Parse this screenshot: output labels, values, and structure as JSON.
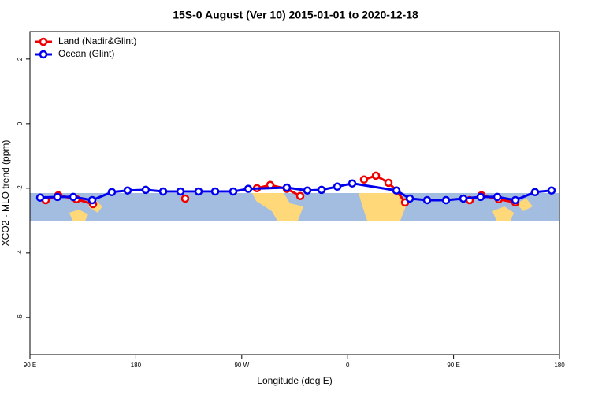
{
  "chart_data": {
    "type": "line",
    "title": "15S-0 August (Ver 10)   2015-01-01 to 2020-12-18",
    "xlabel": "Longitude (deg E)",
    "ylabel": "XCO2 - MLO trend (ppm)",
    "xlim": [
      90,
      540
    ],
    "xticks": [
      {
        "value": 90,
        "label": "90 E"
      },
      {
        "value": 180,
        "label": "180"
      },
      {
        "value": 270,
        "label": "90 W"
      },
      {
        "value": 360,
        "label": "0"
      },
      {
        "value": 450,
        "label": "90 E"
      },
      {
        "value": 540,
        "label": "180"
      }
    ],
    "ylim": [
      -7.15,
      2.85
    ],
    "yticks": [
      2,
      0,
      -2,
      -4,
      -6
    ],
    "legend": "upper left",
    "series": [
      {
        "name": "Land (Nadir&Glint)",
        "color": "#ee0000",
        "x": [
          103.4,
          114.1,
          129.5,
          143.6,
          null,
          221.9,
          null,
          282.9,
          294.2,
          308.3,
          319.7,
          null,
          373.9,
          384,
          394.7,
          401.4,
          408.8,
          null,
          463.7,
          473.7,
          488.4,
          502.5
        ],
        "values": [
          -2.37,
          -2.22,
          -2.34,
          -2.49,
          null,
          -2.32,
          null,
          -2.0,
          -1.9,
          -2.02,
          -2.24,
          null,
          -1.73,
          -1.61,
          -1.83,
          -2.07,
          -2.44,
          null,
          -2.37,
          -2.22,
          -2.34,
          -2.44
        ]
      },
      {
        "name": "Ocean (Glint)",
        "color": "#0000ee",
        "x": [
          98.7,
          113.4,
          126.8,
          142.9,
          159.6,
          173,
          188.4,
          203.2,
          217.9,
          233.3,
          247.4,
          262.8,
          275.5,
          308.3,
          325.7,
          337.8,
          351.2,
          363.9,
          401.4,
          412.8,
          427.5,
          443.6,
          458.3,
          473,
          487.1,
          502.5,
          519.2,
          533.3
        ],
        "values": [
          -2.29,
          -2.27,
          -2.27,
          -2.37,
          -2.12,
          -2.07,
          -2.05,
          -2.1,
          -2.1,
          -2.1,
          -2.1,
          -2.1,
          -2.02,
          -1.98,
          -2.07,
          -2.05,
          -1.95,
          -1.85,
          -2.07,
          -2.32,
          -2.37,
          -2.37,
          -2.32,
          -2.27,
          -2.27,
          -2.37,
          -2.12,
          -2.07
        ]
      }
    ]
  }
}
